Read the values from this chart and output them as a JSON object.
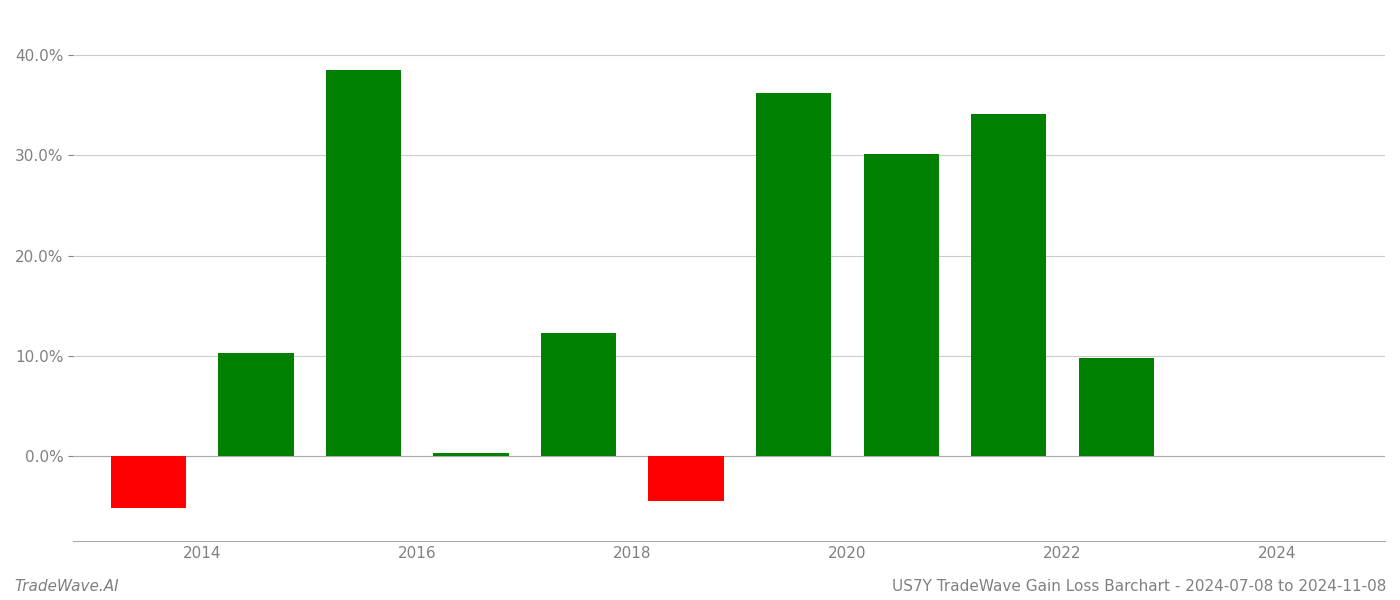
{
  "years": [
    2013.5,
    2014.5,
    2015.5,
    2016.5,
    2017.5,
    2018.5,
    2019.5,
    2020.5,
    2021.5,
    2022.5
  ],
  "values": [
    -0.052,
    0.103,
    0.385,
    0.003,
    0.123,
    -0.045,
    0.362,
    0.301,
    0.341,
    0.098
  ],
  "color_positive": "#008000",
  "color_negative": "#ff0000",
  "ylim_min": -0.085,
  "ylim_max": 0.44,
  "yticks": [
    0.0,
    0.1,
    0.2,
    0.3,
    0.4
  ],
  "xticks": [
    2014,
    2016,
    2018,
    2020,
    2022,
    2024
  ],
  "xtick_labels": [
    "2014",
    "2016",
    "2018",
    "2020",
    "2022",
    "2024"
  ],
  "bar_width": 0.7,
  "grid_color": "#cccccc",
  "background_color": "#ffffff",
  "text_color": "#808080",
  "footer_left": "TradeWave.AI",
  "footer_right": "US7Y TradeWave Gain Loss Barchart - 2024-07-08 to 2024-11-08",
  "footer_fontsize": 11,
  "tick_fontsize": 11,
  "xlim_min": 2012.8,
  "xlim_max": 2025.0
}
